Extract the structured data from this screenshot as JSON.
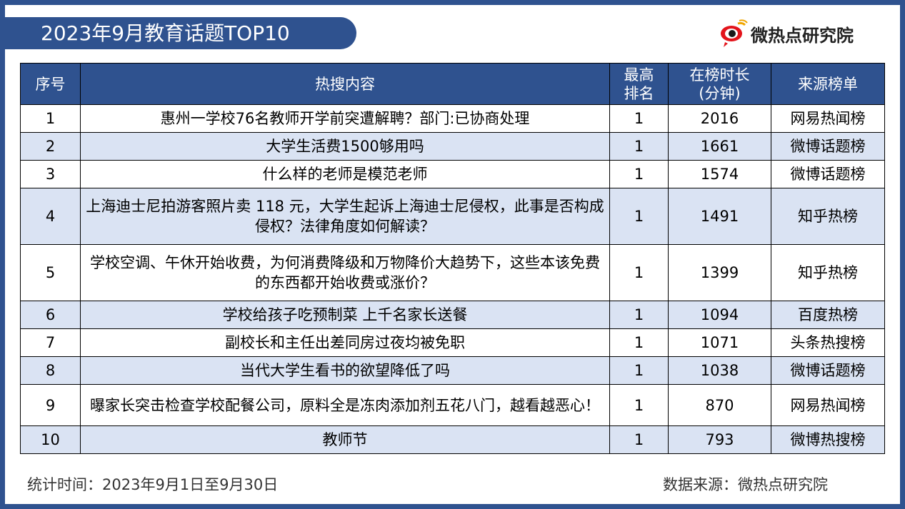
{
  "title": "2023年9月教育话题TOP10",
  "logo": {
    "text": "微热点研究院",
    "icon": "eye-logo-icon"
  },
  "colors": {
    "header_bg": "#2f528f",
    "row_alt": "#dae3f3",
    "frame": "#2f528f"
  },
  "table": {
    "headers": {
      "rank": "序号",
      "content": "热搜内容",
      "top_rank_1": "最高",
      "top_rank_2": "排名",
      "duration_1": "在榜时长",
      "duration_2": "(分钟)",
      "source": "来源榜单"
    },
    "rows": [
      {
        "rank": "1",
        "content": "惠州一学校76名教师开学前突遭解聘？部门:已协商处理",
        "top_rank": "1",
        "duration": "2016",
        "source": "网易热闻榜"
      },
      {
        "rank": "2",
        "content": "大学生活费1500够用吗",
        "top_rank": "1",
        "duration": "1661",
        "source": "微博话题榜"
      },
      {
        "rank": "3",
        "content": "什么样的老师是模范老师",
        "top_rank": "1",
        "duration": "1574",
        "source": "微博话题榜"
      },
      {
        "rank": "4",
        "content": "上海迪士尼拍游客照片卖 118 元，大学生起诉上海迪士尼侵权，此事是否构成侵权？法律角度如何解读？",
        "top_rank": "1",
        "duration": "1491",
        "source": "知乎热榜"
      },
      {
        "rank": "5",
        "content": "学校空调、午休开始收费，为何消费降级和万物降价大趋势下，这些本该免费的东西都开始收费或涨价？",
        "top_rank": "1",
        "duration": "1399",
        "source": "知乎热榜"
      },
      {
        "rank": "6",
        "content": "学校给孩子吃预制菜 上千名家长送餐",
        "top_rank": "1",
        "duration": "1094",
        "source": "百度热榜"
      },
      {
        "rank": "7",
        "content": "副校长和主任出差同房过夜均被免职",
        "top_rank": "1",
        "duration": "1071",
        "source": "头条热搜榜"
      },
      {
        "rank": "8",
        "content": "当代大学生看书的欲望降低了吗",
        "top_rank": "1",
        "duration": "1038",
        "source": "微博话题榜"
      },
      {
        "rank": "9",
        "content": "曝家长突击检查学校配餐公司，原料全是冻肉添加剂五花八门，越看越恶心！",
        "top_rank": "1",
        "duration": "870",
        "source": "网易热闻榜"
      },
      {
        "rank": "10",
        "content": "教师节",
        "top_rank": "1",
        "duration": "793",
        "source": "微博热搜榜"
      }
    ]
  },
  "footer": {
    "period": "统计时间：2023年9月1日至9月30日",
    "source": "数据来源：微热点研究院"
  }
}
